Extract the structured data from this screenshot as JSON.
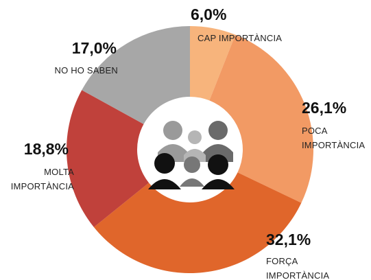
{
  "chart_data": {
    "type": "donut",
    "categories": [
      "CAP IMPORTÀNCIA",
      "POCA IMPORTÀNCIA",
      "FORÇA IMPORTÀNCIA",
      "MOLTA IMPORTÀNCIA",
      "NO HO SABEN"
    ],
    "values": [
      6.0,
      26.1,
      32.1,
      18.8,
      17.0
    ],
    "value_labels": [
      "6,0%",
      "26,1%",
      "32,1%",
      "18,8%",
      "17,0%"
    ],
    "colors": [
      "#f7b47c",
      "#f29a64",
      "#e0662b",
      "#c0413b",
      "#a7a7a7"
    ]
  }
}
